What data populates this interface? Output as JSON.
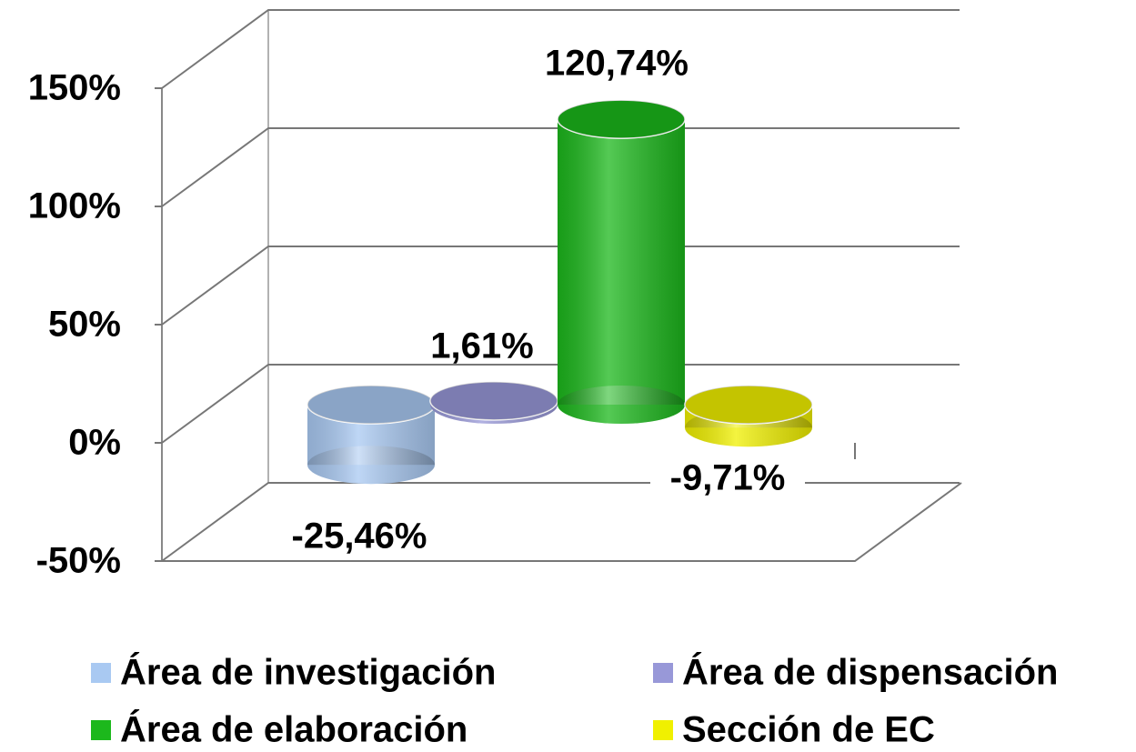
{
  "chart_data": {
    "type": "bar",
    "series": [
      {
        "name": "Área de investigación",
        "color": "#a9c9f2",
        "values": [
          -25.46
        ],
        "value_labels": [
          "-25,46%"
        ]
      },
      {
        "name": "Área de dispensación",
        "color": "#9898d8",
        "values": [
          1.61
        ],
        "value_labels": [
          "1,61%"
        ]
      },
      {
        "name": "Área de elaboración",
        "color": "#1cb81c",
        "values": [
          120.74
        ],
        "value_labels": [
          "120,74%"
        ]
      },
      {
        "name": "Sección de EC",
        "color": "#f0f000",
        "values": [
          -9.71
        ],
        "value_labels": [
          "-9,71%"
        ]
      }
    ],
    "ylim": [
      -50,
      150
    ],
    "yticks": [
      {
        "value": -50,
        "label": "-50%"
      },
      {
        "value": 0,
        "label": "0%"
      },
      {
        "value": 50,
        "label": "50%"
      },
      {
        "value": 100,
        "label": "100%"
      },
      {
        "value": 150,
        "label": "150%"
      }
    ],
    "grid": true
  }
}
